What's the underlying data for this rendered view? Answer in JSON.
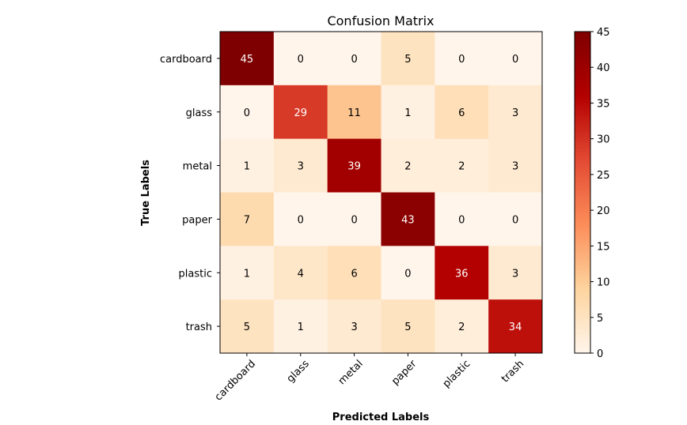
{
  "chart_data": {
    "type": "heatmap",
    "title": "Confusion Matrix",
    "xlabel": "Predicted Labels",
    "ylabel": "True Labels",
    "x_categories": [
      "cardboard",
      "glass",
      "metal",
      "paper",
      "plastic",
      "trash"
    ],
    "y_categories": [
      "cardboard",
      "glass",
      "metal",
      "paper",
      "plastic",
      "trash"
    ],
    "values": [
      [
        45,
        0,
        0,
        5,
        0,
        0
      ],
      [
        0,
        29,
        11,
        1,
        6,
        3
      ],
      [
        1,
        3,
        39,
        2,
        2,
        3
      ],
      [
        7,
        0,
        0,
        43,
        0,
        0
      ],
      [
        1,
        4,
        6,
        0,
        36,
        3
      ],
      [
        5,
        1,
        3,
        5,
        2,
        34
      ]
    ],
    "colormap": "OrRd-like (white to dark red)",
    "color_stops": [
      "#fff5eb",
      "#fdd49e",
      "#fc8d59",
      "#e34a33",
      "#b30000",
      "#7f0000"
    ],
    "colorbar": {
      "range": [
        0,
        45
      ],
      "ticks": [
        "0",
        "5",
        "10",
        "15",
        "20",
        "25",
        "30",
        "35",
        "40",
        "45"
      ]
    },
    "x_tick_rotation_deg": 45,
    "grid": false
  }
}
